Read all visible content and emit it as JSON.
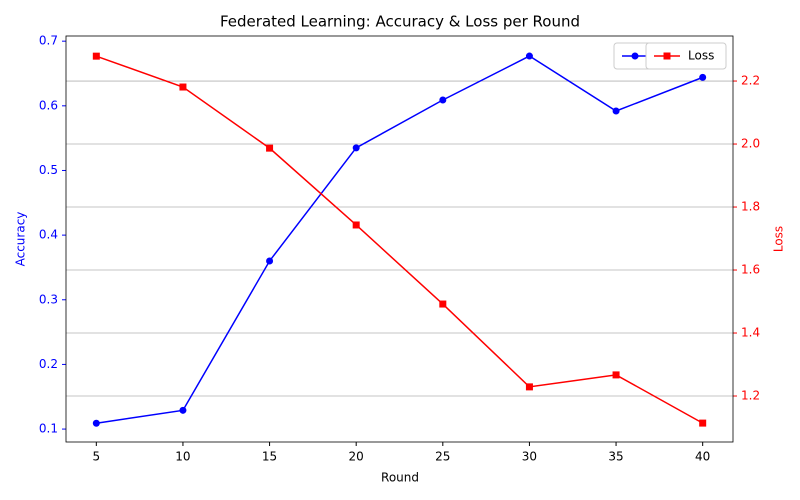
{
  "chart_data": {
    "type": "line",
    "title": "Federated Learning: Accuracy & Loss per Round",
    "x_label": "Round",
    "y_label": "Accuracy",
    "y2_label": "Loss",
    "x": [
      5,
      10,
      15,
      20,
      25,
      30,
      35,
      40
    ],
    "xlim": [
      3.25,
      41.75
    ],
    "xticks": [
      5,
      10,
      15,
      20,
      25,
      30,
      35,
      40
    ],
    "ylim": [
      0.08,
      0.708
    ],
    "yticks": [
      0.1,
      0.2,
      0.3,
      0.4,
      0.5,
      0.6,
      0.7
    ],
    "y2lim": [
      1.054,
      2.343
    ],
    "y2ticks": [
      1.2,
      1.4,
      1.6,
      1.8,
      2.0,
      2.2
    ],
    "y2grid": true,
    "series": [
      {
        "name": "Accuracy",
        "color": "#0000ff",
        "marker": "circle",
        "values": [
          0.109,
          0.129,
          0.36,
          0.535,
          0.609,
          0.677,
          0.592,
          0.644
        ]
      },
      {
        "name": "Loss",
        "color": "#ff0000",
        "marker": "square",
        "axis": "y2",
        "values": [
          2.279,
          2.181,
          1.987,
          1.743,
          1.492,
          1.229,
          1.267,
          1.114
        ]
      }
    ]
  }
}
